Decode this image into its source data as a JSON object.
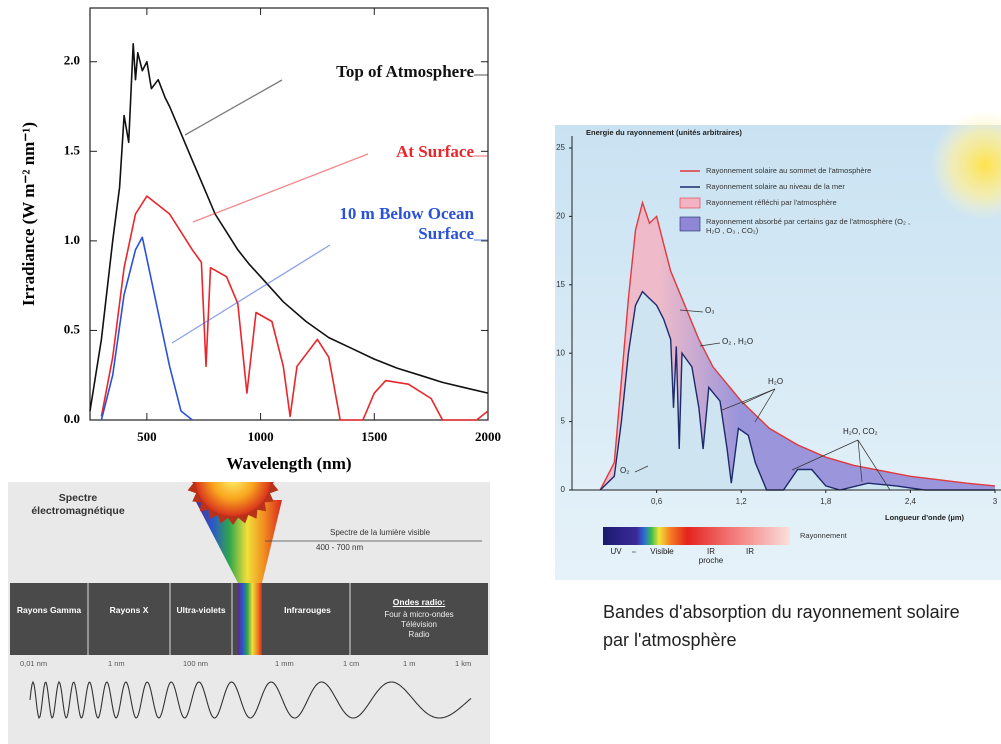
{
  "chart_data": [
    {
      "type": "line",
      "xlabel": "Wavelength (nm)",
      "ylabel": "Irradiance (W m⁻² nm⁻¹)",
      "xlim": [
        250,
        2000
      ],
      "xticks": [
        500,
        1000,
        1500,
        2000
      ],
      "ylim": [
        0,
        2.3
      ],
      "yticks": [
        {
          "value": 0,
          "label": "0.0"
        },
        0.5,
        {
          "value": 1,
          "label": "1.0"
        },
        1.5,
        {
          "value": 2,
          "label": "2.0"
        }
      ],
      "series": [
        {
          "name": "Top of Atmosphere",
          "color": "#111111",
          "x": [
            250,
            300,
            350,
            380,
            400,
            420,
            440,
            450,
            460,
            480,
            500,
            520,
            550,
            580,
            600,
            650,
            700,
            750,
            800,
            850,
            900,
            950,
            1000,
            1100,
            1200,
            1300,
            1400,
            1500,
            1600,
            1700,
            1800,
            1900,
            2000
          ],
          "values": [
            0.05,
            0.45,
            1.0,
            1.3,
            1.7,
            1.55,
            2.1,
            1.9,
            2.05,
            1.95,
            2.0,
            1.85,
            1.9,
            1.8,
            1.75,
            1.6,
            1.45,
            1.3,
            1.15,
            1.05,
            0.95,
            0.87,
            0.8,
            0.66,
            0.55,
            0.46,
            0.4,
            0.34,
            0.29,
            0.25,
            0.21,
            0.18,
            0.15
          ]
        },
        {
          "name": "At Surface",
          "color": "#e8262b",
          "x": [
            300,
            350,
            400,
            450,
            500,
            550,
            600,
            650,
            700,
            740,
            760,
            780,
            850,
            900,
            940,
            980,
            1050,
            1100,
            1130,
            1160,
            1250,
            1300,
            1350,
            1450,
            1500,
            1550,
            1650,
            1750,
            1800,
            1950,
            2000
          ],
          "values": [
            0.02,
            0.35,
            0.85,
            1.15,
            1.25,
            1.2,
            1.15,
            1.05,
            0.95,
            0.88,
            0.3,
            0.85,
            0.8,
            0.65,
            0.15,
            0.6,
            0.55,
            0.3,
            0.02,
            0.3,
            0.45,
            0.35,
            0,
            0,
            0.15,
            0.22,
            0.2,
            0.12,
            0,
            0,
            0.05
          ]
        },
        {
          "name": "10 m Below Ocean Surface",
          "color": "#2a52d8",
          "x": [
            300,
            350,
            400,
            450,
            480,
            500,
            550,
            600,
            650,
            700
          ],
          "values": [
            0,
            0.25,
            0.7,
            0.95,
            1.02,
            0.9,
            0.6,
            0.3,
            0.05,
            0
          ]
        }
      ]
    },
    {
      "type": "area",
      "ylabel": "Energie du rayonnement (unités arbitraires)",
      "xlabel": "Longueur d'onde (µm)",
      "xlim": [
        0,
        3
      ],
      "xticks": [
        {
          "value": 0.6,
          "label": "0,6"
        },
        {
          "value": 1.2,
          "label": "1,2"
        },
        {
          "value": 1.8,
          "label": "1,8"
        },
        {
          "value": 2.4,
          "label": "2,4"
        },
        3
      ],
      "ylim": [
        0,
        25
      ],
      "yticks": [
        0,
        5,
        10,
        15,
        20,
        25
      ],
      "series": [
        {
          "name": "Rayonnement solaire au sommet de l'atmosphère",
          "color": "#e0393e",
          "x": [
            0.2,
            0.3,
            0.35,
            0.4,
            0.45,
            0.5,
            0.55,
            0.6,
            0.65,
            0.7,
            0.8,
            0.9,
            1.0,
            1.2,
            1.4,
            1.6,
            1.8,
            2.0,
            2.4,
            2.8,
            3.0
          ],
          "values": [
            0,
            2,
            8,
            14,
            19,
            21,
            19.5,
            20,
            18,
            16,
            13.5,
            11,
            9,
            6.5,
            4.5,
            3.3,
            2.4,
            1.8,
            1,
            0.5,
            0.3
          ]
        },
        {
          "name": "Rayonnement solaire au niveau de la mer",
          "color": "#1f2a6b",
          "x": [
            0.2,
            0.3,
            0.35,
            0.4,
            0.45,
            0.5,
            0.55,
            0.6,
            0.65,
            0.7,
            0.72,
            0.74,
            0.76,
            0.78,
            0.85,
            0.9,
            0.93,
            0.97,
            1.05,
            1.1,
            1.13,
            1.18,
            1.25,
            1.3,
            1.38,
            1.5,
            1.6,
            1.7,
            1.8,
            1.9,
            2.1,
            2.3,
            2.5,
            3.0
          ],
          "values": [
            0,
            1,
            5,
            10,
            13.5,
            14.5,
            14,
            13.5,
            12.5,
            11,
            6,
            10.5,
            3,
            10,
            9,
            6,
            3,
            7.5,
            6.5,
            3,
            0.5,
            4.5,
            4,
            2,
            0,
            0,
            1.5,
            1.5,
            0.3,
            0,
            0.5,
            0.3,
            0,
            0
          ]
        }
      ],
      "areas": [
        {
          "name": "Rayonnement réfléchi par l'atmosphère",
          "color": "#f4b3c2"
        },
        {
          "name": "Rayonnement absorbé par certains gaz de l'atmosphère (O₂ , H₂O , O₃ , CO₂)",
          "color": "#8f86d6"
        }
      ],
      "annotations": [
        "O₃",
        "O₂ , H₂O",
        "H₂O",
        "H₂O, CO₂",
        "O₂"
      ],
      "band_labels": [
        "UV",
        "Visible",
        "IR proche",
        "IR"
      ],
      "band_caption": "Rayonnement"
    }
  ],
  "spectrum_diagram": {
    "title": "Spectre électromagnétique",
    "visible_label": "Spectre de la lumière visible",
    "visible_range": "400 - 700 nm",
    "bands": [
      "Rayons Gamma",
      "Rayons X",
      "Ultra-violets",
      "Infrarouges"
    ],
    "radio_title": "Ondes radio:",
    "radio_items": [
      "Four à micro-ondes",
      "Télévision",
      "Radio"
    ],
    "scale": [
      "0,01 nm",
      "1 nm",
      "100 nm",
      "1 mm",
      "1 cm",
      "1 m",
      "1 km"
    ]
  },
  "caption": "Bandes d'absorption du rayonnement solaire par l'atmosphère"
}
